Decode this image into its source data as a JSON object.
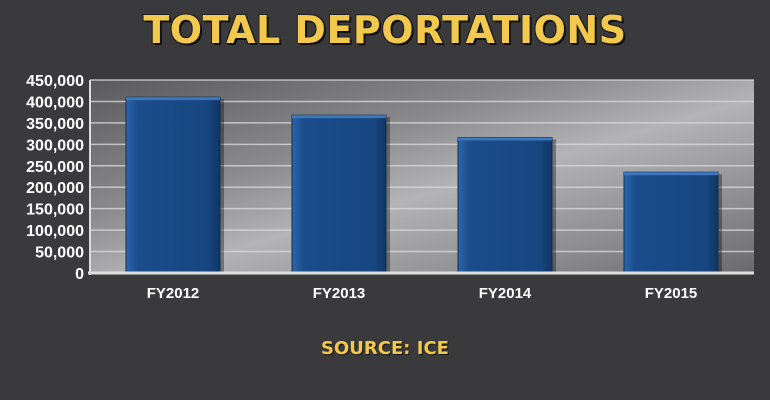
{
  "title": "TOTAL DEPORTATIONS",
  "source": "SOURCE: ICE",
  "colors": {
    "title": "#f2c94c",
    "bar": "#1b4d8c",
    "background": "#3a3a3d"
  },
  "chart_data": {
    "type": "bar",
    "categories": [
      "FY2012",
      "FY2013",
      "FY2014",
      "FY2015"
    ],
    "values": [
      410000,
      368000,
      316000,
      235000
    ],
    "y_ticks": [
      "0",
      "50,000",
      "100,000",
      "150,000",
      "200,000",
      "250,000",
      "300,000",
      "350,000",
      "400,000",
      "450,000"
    ],
    "ylim": [
      0,
      450000
    ],
    "grid": true
  }
}
